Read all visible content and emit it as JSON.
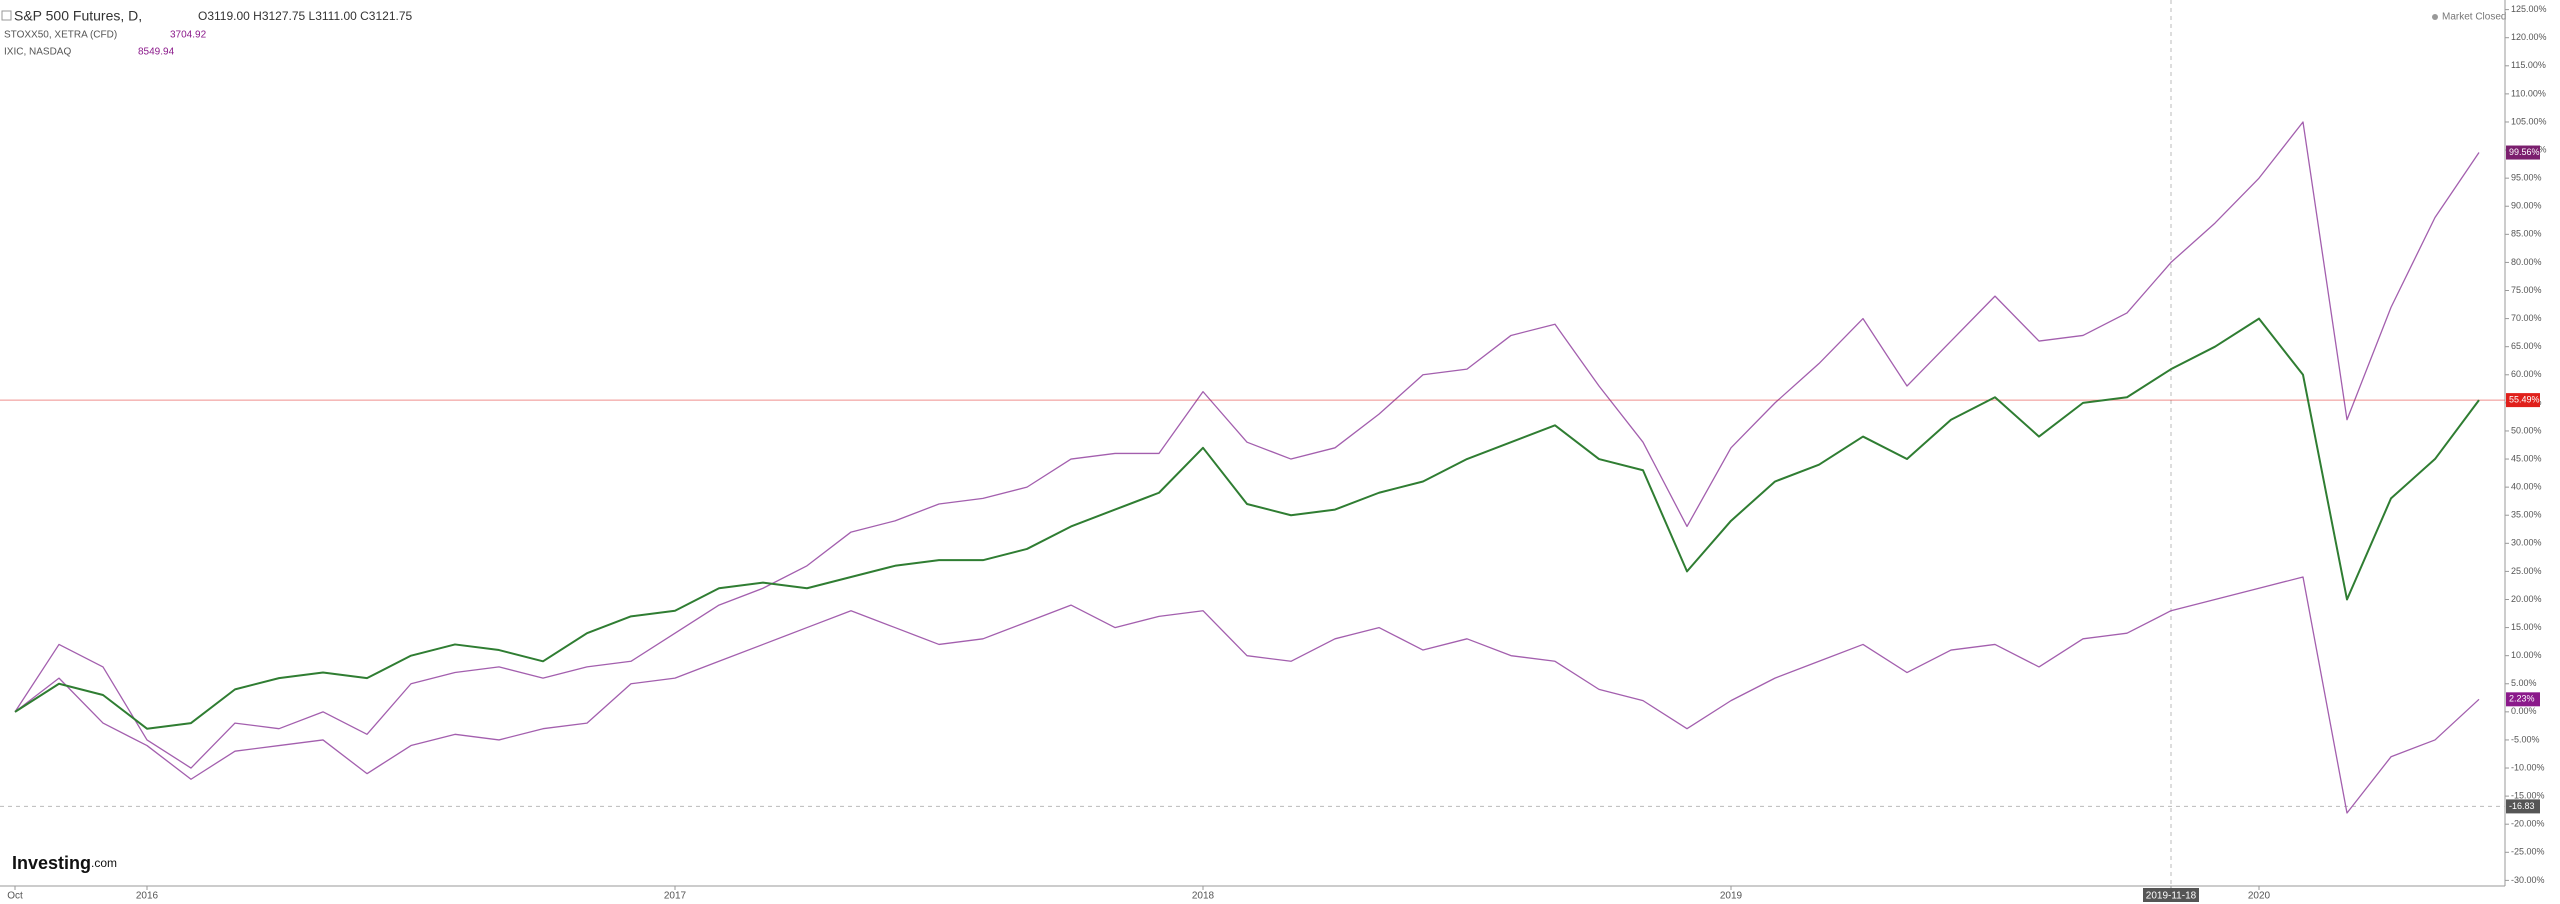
{
  "chart_data": {
    "type": "line",
    "header": {
      "symbol": "S&P 500 Futures, D,",
      "ohlc": "O3119.00  H3127.75  L3111.00  C3121.75",
      "rows": [
        {
          "name": "STOXX50, XETRA (CFD)",
          "last": "3704.92"
        },
        {
          "name": "IXIC, NASDAQ",
          "last": "8549.94"
        }
      ]
    },
    "status": "Market Closed",
    "brand": {
      "name": "Investing",
      "suffix": ".com"
    },
    "categories": [
      "Oct",
      null,
      null,
      "2016",
      null,
      null,
      null,
      null,
      null,
      null,
      null,
      null,
      null,
      null,
      null,
      "2017",
      null,
      null,
      null,
      null,
      null,
      null,
      null,
      null,
      null,
      null,
      null,
      "2018",
      null,
      null,
      null,
      null,
      null,
      null,
      null,
      null,
      null,
      null,
      null,
      "2019",
      null,
      null,
      null,
      null,
      null,
      null,
      null,
      null,
      null,
      "2019-11-18",
      null,
      "2020",
      null,
      null,
      null,
      null,
      null
    ],
    "series": [
      {
        "name": "S&P 500 Futures",
        "color": "#2f7d32",
        "price_line": true,
        "end_label": "55.49%",
        "end_color": "#e0201b",
        "values": [
          0,
          5,
          3,
          -3,
          -2,
          4,
          6,
          7,
          6,
          10,
          12,
          11,
          9,
          14,
          17,
          18,
          22,
          23,
          22,
          24,
          26,
          27,
          27,
          29,
          33,
          36,
          39,
          47,
          37,
          35,
          36,
          39,
          41,
          45,
          48,
          51,
          45,
          43,
          25,
          34,
          41,
          44,
          49,
          45,
          52,
          56,
          49,
          55,
          56,
          61,
          65,
          70,
          60,
          20,
          38,
          45,
          55.49
        ]
      },
      {
        "name": "IXIC, NASDAQ",
        "color": "#a35fae",
        "end_label": "99.56%",
        "end_color": "#7b1f6e",
        "values": [
          0,
          12,
          8,
          -5,
          -10,
          -2,
          -3,
          0,
          -4,
          5,
          7,
          8,
          6,
          8,
          9,
          14,
          19,
          22,
          26,
          32,
          34,
          37,
          38,
          40,
          45,
          46,
          46,
          57,
          48,
          45,
          47,
          53,
          60,
          61,
          67,
          69,
          58,
          48,
          33,
          47,
          55,
          62,
          70,
          58,
          66,
          74,
          66,
          67,
          71,
          80,
          87,
          95,
          105,
          52,
          72,
          88,
          99.56
        ]
      },
      {
        "name": "STOXX50, XETRA (CFD)",
        "color": "#a35fae",
        "end_label": "2.23%",
        "end_color": "#8b1a8b",
        "values": [
          0,
          6,
          -2,
          -6,
          -12,
          -7,
          -6,
          -5,
          -11,
          -6,
          -4,
          -5,
          -3,
          -2,
          5,
          6,
          9,
          12,
          15,
          18,
          15,
          12,
          13,
          16,
          19,
          15,
          17,
          18,
          10,
          9,
          13,
          15,
          11,
          13,
          10,
          9,
          4,
          2,
          -3,
          2,
          6,
          9,
          12,
          7,
          11,
          12,
          8,
          13,
          14,
          18,
          20,
          22,
          24,
          -18,
          -8,
          -5,
          2.23
        ]
      }
    ],
    "crosshair": {
      "x": "2019-11-18",
      "y": -16.83
    },
    "ylim": [
      -31,
      126
    ],
    "yticks": [
      {
        "value": -30,
        "label": "-30.00%"
      },
      {
        "value": -25,
        "label": "-25.00%"
      },
      {
        "value": -20,
        "label": "-20.00%"
      },
      {
        "value": -15,
        "label": "-15.00%"
      },
      {
        "value": -10,
        "label": "-10.00%"
      },
      {
        "value": -5,
        "label": "-5.00%"
      },
      {
        "value": 0,
        "label": "0.00%"
      },
      {
        "value": 5,
        "label": "5.00%"
      },
      {
        "value": 10,
        "label": "10.00%"
      },
      {
        "value": 15,
        "label": "15.00%"
      },
      {
        "value": 20,
        "label": "20.00%"
      },
      {
        "value": 25,
        "label": "25.00%"
      },
      {
        "value": 30,
        "label": "30.00%"
      },
      {
        "value": 35,
        "label": "35.00%"
      },
      {
        "value": 40,
        "label": "40.00%"
      },
      {
        "value": 45,
        "label": "45.00%"
      },
      {
        "value": 50,
        "label": "50.00%"
      },
      {
        "value": 55,
        "label": "55.00%"
      },
      {
        "value": 60,
        "label": "60.00%"
      },
      {
        "value": 65,
        "label": "65.00%"
      },
      {
        "value": 70,
        "label": "70.00%"
      },
      {
        "value": 75,
        "label": "75.00%"
      },
      {
        "value": 80,
        "label": "80.00%"
      },
      {
        "value": 85,
        "label": "85.00%"
      },
      {
        "value": 90,
        "label": "90.00%"
      },
      {
        "value": 95,
        "label": "95.00%"
      },
      {
        "value": 100,
        "label": "100.00%"
      },
      {
        "value": 105,
        "label": "105.00%"
      },
      {
        "value": 110,
        "label": "110.00%"
      },
      {
        "value": 115,
        "label": "115.00%"
      },
      {
        "value": 120,
        "label": "120.00%"
      },
      {
        "value": 125,
        "label": "125.00%"
      }
    ],
    "grid": false
  }
}
